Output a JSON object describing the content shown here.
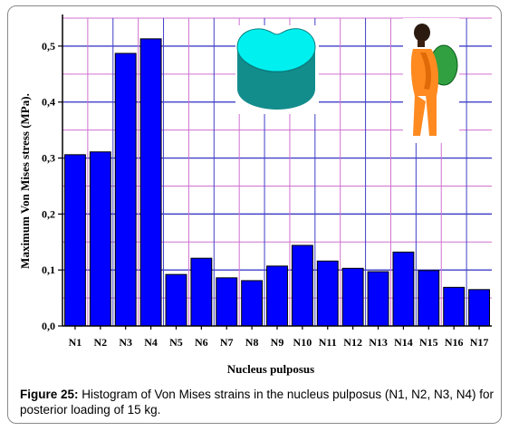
{
  "chart_data": {
    "type": "bar",
    "xlabel": "Nucleus pulposus",
    "ylabel": "Maximum Von Mises stress (MPa).",
    "categories": [
      "N1",
      "N2",
      "N3",
      "N4",
      "N5",
      "N6",
      "N7",
      "N8",
      "N9",
      "N10",
      "N11",
      "N12",
      "N13",
      "N14",
      "N15",
      "N16",
      "N17"
    ],
    "values": [
      0.306,
      0.311,
      0.487,
      0.513,
      0.092,
      0.121,
      0.086,
      0.081,
      0.107,
      0.144,
      0.116,
      0.103,
      0.097,
      0.132,
      0.099,
      0.069,
      0.065
    ],
    "ylim": [
      0,
      0.55
    ],
    "yticks": [
      0.0,
      0.1,
      0.2,
      0.3,
      0.4,
      0.5
    ],
    "ytick_labels": [
      "0,0",
      "0,1",
      "0,2",
      "0,3",
      "0,4",
      "0,5"
    ],
    "grid": true,
    "bar_color": "#0000ff",
    "grid_colors": [
      "#4040c8",
      "#d070d0"
    ],
    "inset_icons": [
      "nucleus-disc-icon",
      "person-with-backpack-icon"
    ]
  },
  "caption": {
    "label": "Figure 25:",
    "text": " Histogram of Von Mises strains in the nucleus pulposus (N1, N2, N3, N4) for posterior loading of 15 kg."
  }
}
